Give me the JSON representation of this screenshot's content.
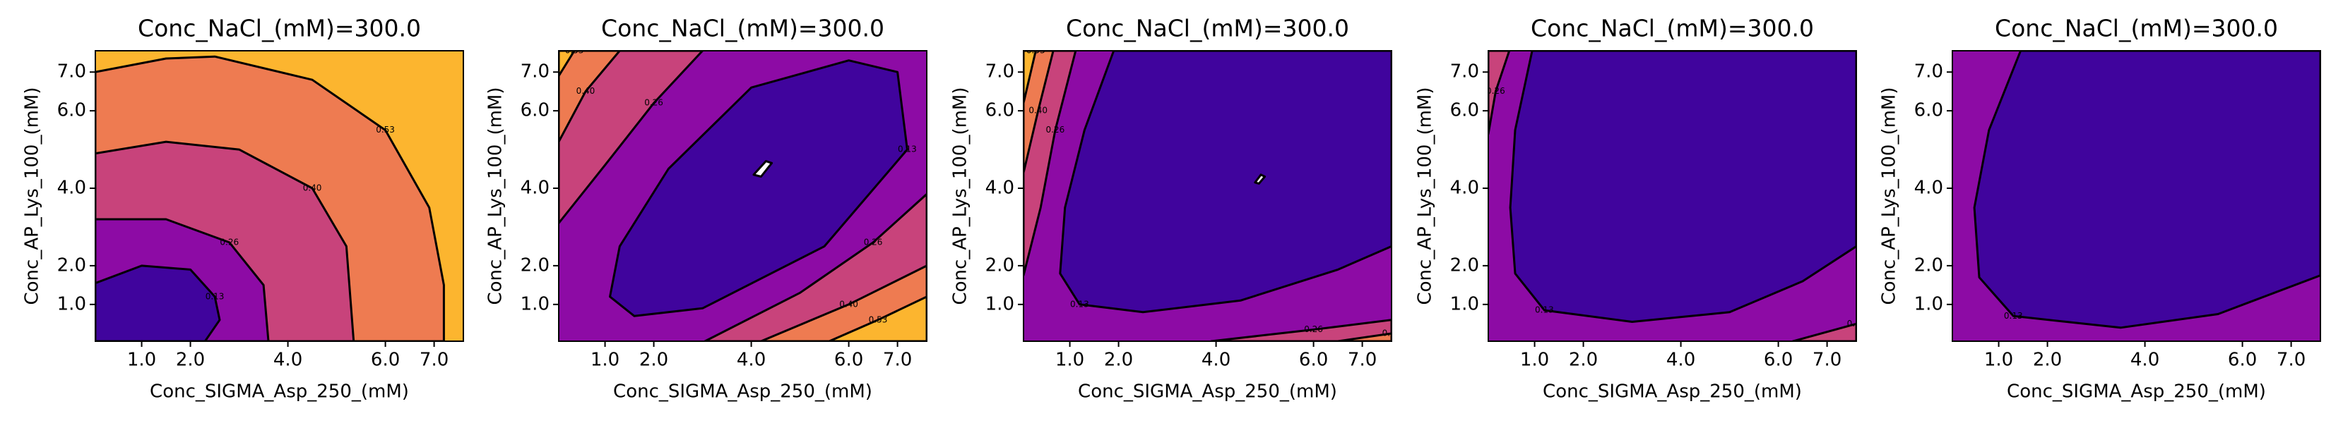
{
  "chart_data": [
    {
      "type": "contour",
      "title": "Conc_NaCl_(mM)=300.0",
      "xlabel": "Conc_SIGMA_Asp_250_(mM)",
      "ylabel": "Conc_AP_Lys_100_(mM)",
      "xlim": [
        0.05,
        7.6
      ],
      "ylim": [
        0.05,
        7.55
      ],
      "xticks": [
        {
          "value": 1,
          "label": "1.0"
        },
        {
          "value": 2,
          "label": "2.0"
        },
        {
          "value": 4,
          "label": "4.0"
        },
        {
          "value": 6,
          "label": "6.0"
        },
        {
          "value": 7,
          "label": "7.0"
        }
      ],
      "yticks": [
        {
          "value": 1,
          "label": "1.0"
        },
        {
          "value": 2,
          "label": "2.0"
        },
        {
          "value": 4,
          "label": "4.0"
        },
        {
          "value": 6,
          "label": "6.0"
        },
        {
          "value": 7,
          "label": "7.0"
        }
      ],
      "background": "#fcb52f",
      "contours": [
        {
          "level": {
            "value": 0.53,
            "label": "0.53"
          },
          "fill": "#ee7b51",
          "x": [
            0.05,
            1.5,
            2.5,
            4.5,
            6,
            6.9,
            7.2,
            7.2,
            0.05
          ],
          "y": [
            7.0,
            7.35,
            7.4,
            6.8,
            5.5,
            3.5,
            1.5,
            0.05,
            0.05
          ]
        },
        {
          "level": {
            "value": 0.4,
            "label": "0.40"
          },
          "fill": "#c8437b",
          "x": [
            0.05,
            1.5,
            3,
            4.5,
            5.2,
            5.35,
            0.05
          ],
          "y": [
            4.9,
            5.2,
            5.0,
            4.0,
            2.5,
            0.05,
            0.05
          ]
        },
        {
          "level": {
            "value": 0.26,
            "label": "0.26"
          },
          "fill": "#8d0ba5",
          "x": [
            0.05,
            1.5,
            2.8,
            3.5,
            3.6,
            0.05
          ],
          "y": [
            3.2,
            3.2,
            2.6,
            1.5,
            0.05,
            0.05
          ]
        },
        {
          "level": {
            "value": 0.13,
            "label": "0.13"
          },
          "fill": "#40049d",
          "x": [
            0.05,
            1,
            2,
            2.5,
            2.6,
            2.3,
            0.05
          ],
          "y": [
            1.55,
            2.0,
            1.9,
            1.2,
            0.6,
            0.05,
            0.05
          ]
        }
      ]
    },
    {
      "type": "contour",
      "title": "Conc_NaCl_(mM)=300.0",
      "xlabel": "Conc_SIGMA_Asp_250_(mM)",
      "ylabel": "Conc_AP_Lys_100_(mM)",
      "xlim": [
        0.05,
        7.6
      ],
      "ylim": [
        0.05,
        7.55
      ],
      "xticks": [
        {
          "value": 1,
          "label": "1.0"
        },
        {
          "value": 2,
          "label": "2.0"
        },
        {
          "value": 4,
          "label": "4.0"
        },
        {
          "value": 6,
          "label": "6.0"
        },
        {
          "value": 7,
          "label": "7.0"
        }
      ],
      "yticks": [
        {
          "value": 1,
          "label": "1.0"
        },
        {
          "value": 2,
          "label": "2.0"
        },
        {
          "value": 4,
          "label": "4.0"
        },
        {
          "value": 6,
          "label": "6.0"
        },
        {
          "value": 7,
          "label": "7.0"
        }
      ],
      "background": "#8d0ba5",
      "contours": [
        {
          "level": {
            "value": 0.26,
            "label": "0.26"
          },
          "fill": "#c8437b",
          "x": [
            0.05,
            1,
            2,
            3,
            0.05
          ],
          "y": [
            3.1,
            4.6,
            6.2,
            7.55,
            7.55
          ]
        },
        {
          "level": {
            "value": 0.4,
            "label": "0.40"
          },
          "fill": "#ee7b51",
          "x": [
            0.05,
            0.6,
            1.3,
            0.05
          ],
          "y": [
            5.2,
            6.5,
            7.55,
            7.55
          ]
        },
        {
          "level": {
            "value": 0.53,
            "label": "0.53"
          },
          "fill": "#fcb52f",
          "x": [
            0.05,
            0.37,
            0.05
          ],
          "y": [
            6.9,
            7.55,
            7.55
          ]
        },
        {
          "level": {
            "value": 0.26,
            "label": "0.26"
          },
          "fill": "#c8437b",
          "x": [
            3.05,
            5,
            6.5,
            7.6,
            7.6
          ],
          "y": [
            0.05,
            1.3,
            2.6,
            3.85,
            0.05
          ]
        },
        {
          "level": {
            "value": 0.4,
            "label": "0.40"
          },
          "fill": "#ee7b51",
          "x": [
            4.2,
            6,
            7.6,
            7.6
          ],
          "y": [
            0.05,
            1.0,
            2.0,
            0.05
          ]
        },
        {
          "level": {
            "value": 0.53,
            "label": "0.53"
          },
          "fill": "#fcb52f",
          "x": [
            5.6,
            6.6,
            7.6,
            7.6
          ],
          "y": [
            0.05,
            0.6,
            1.2,
            0.05
          ]
        },
        {
          "level": {
            "value": 0.13,
            "label": "0.13"
          },
          "fill": "#40049d",
          "x": [
            1.1,
            1.6,
            3,
            5.5,
            7.2,
            7.0,
            6,
            4,
            2.3,
            1.3
          ],
          "y": [
            1.2,
            0.7,
            0.9,
            2.5,
            5,
            7.0,
            7.3,
            6.6,
            4.5,
            2.5
          ]
        },
        {
          "fill": "#ffffff",
          "x": [
            4.05,
            4.3,
            4.42,
            4.2
          ],
          "y": [
            4.35,
            4.7,
            4.65,
            4.3
          ]
        }
      ]
    },
    {
      "type": "contour",
      "title": "Conc_NaCl_(mM)=300.0",
      "xlabel": "Conc_SIGMA_Asp_250_(mM)",
      "ylabel": "Conc_AP_Lys_100_(mM)",
      "xlim": [
        0.05,
        7.6
      ],
      "ylim": [
        0.05,
        7.55
      ],
      "xticks": [
        {
          "value": 1,
          "label": "1.0"
        },
        {
          "value": 2,
          "label": "2.0"
        },
        {
          "value": 4,
          "label": "4.0"
        },
        {
          "value": 6,
          "label": "6.0"
        },
        {
          "value": 7,
          "label": "7.0"
        }
      ],
      "yticks": [
        {
          "value": 1,
          "label": "1.0"
        },
        {
          "value": 2,
          "label": "2.0"
        },
        {
          "value": 4,
          "label": "4.0"
        },
        {
          "value": 6,
          "label": "6.0"
        },
        {
          "value": 7,
          "label": "7.0"
        }
      ],
      "background": "#8d0ba5",
      "contours": [
        {
          "level": {
            "value": 0.26,
            "label": "0.26"
          },
          "fill": "#c8437b",
          "x": [
            0.05,
            0.4,
            0.7,
            1.12,
            0.05
          ],
          "y": [
            1.75,
            3.5,
            5.5,
            7.55,
            7.55
          ]
        },
        {
          "level": {
            "value": 0.4,
            "label": "0.40"
          },
          "fill": "#ee7b51",
          "x": [
            0.05,
            0.35,
            0.66,
            0.05
          ],
          "y": [
            4.4,
            6,
            7.55,
            7.55
          ]
        },
        {
          "level": {
            "value": 0.53,
            "label": "0.53"
          },
          "fill": "#fcb52f",
          "x": [
            0.05,
            0.3,
            0.05
          ],
          "y": [
            6.2,
            7.55,
            7.55
          ]
        },
        {
          "level": {
            "value": 0.26,
            "label": "0.26"
          },
          "fill": "#c8437b",
          "x": [
            3.9,
            6,
            7.6,
            7.6
          ],
          "y": [
            0.05,
            0.35,
            0.6,
            0.05
          ]
        },
        {
          "level": {
            "value": 0.4,
            "label": "0.40"
          },
          "fill": "#ee7b51",
          "x": [
            6.5,
            7.6,
            7.6
          ],
          "y": [
            0.05,
            0.25,
            0.05
          ]
        },
        {
          "level": {
            "value": 0.13,
            "label": "0.13"
          },
          "fill": "#40049d",
          "x": [
            1.9,
            1.3,
            0.9,
            0.8,
            1.2,
            2.5,
            4.5,
            6.5,
            7.6,
            7.6
          ],
          "y": [
            7.55,
            5.5,
            3.5,
            1.8,
            1.0,
            0.8,
            1.1,
            1.9,
            2.5,
            7.55
          ]
        },
        {
          "fill": "#ffffff",
          "x": [
            4.8,
            4.92,
            5.0,
            4.88
          ],
          "y": [
            4.15,
            4.35,
            4.3,
            4.12
          ]
        }
      ]
    },
    {
      "type": "contour",
      "title": "Conc_NaCl_(mM)=300.0",
      "xlabel": "Conc_SIGMA_Asp_250_(mM)",
      "ylabel": "Conc_AP_Lys_100_(mM)",
      "xlim": [
        0.05,
        7.6
      ],
      "ylim": [
        0.05,
        7.55
      ],
      "xticks": [
        {
          "value": 1,
          "label": "1.0"
        },
        {
          "value": 2,
          "label": "2.0"
        },
        {
          "value": 4,
          "label": "4.0"
        },
        {
          "value": 6,
          "label": "6.0"
        },
        {
          "value": 7,
          "label": "7.0"
        }
      ],
      "yticks": [
        {
          "value": 1,
          "label": "1.0"
        },
        {
          "value": 2,
          "label": "2.0"
        },
        {
          "value": 4,
          "label": "4.0"
        },
        {
          "value": 6,
          "label": "6.0"
        },
        {
          "value": 7,
          "label": "7.0"
        }
      ],
      "background": "#8d0ba5",
      "contours": [
        {
          "level": {
            "value": 0.26,
            "label": "0.26"
          },
          "fill": "#c8437b",
          "x": [
            0.05,
            0.2,
            0.48,
            0.05
          ],
          "y": [
            5.4,
            6.5,
            7.55,
            7.55
          ]
        },
        {
          "level": {
            "value": 0.26,
            "label": "0.26"
          },
          "fill": "#c8437b",
          "x": [
            6.3,
            7.6,
            7.6
          ],
          "y": [
            0.05,
            0.5,
            0.05
          ]
        },
        {
          "level": {
            "value": 0.13,
            "label": "0.13"
          },
          "fill": "#40049d",
          "x": [
            0.95,
            0.6,
            0.5,
            0.6,
            1.2,
            3,
            5,
            6.5,
            7.6,
            7.6
          ],
          "y": [
            7.55,
            5.5,
            3.5,
            1.8,
            0.85,
            0.55,
            0.8,
            1.6,
            2.5,
            7.55
          ]
        }
      ]
    },
    {
      "type": "contour",
      "title": "Conc_NaCl_(mM)=300.0",
      "xlabel": "Conc_SIGMA_Asp_250_(mM)",
      "ylabel": "Conc_AP_Lys_100_(mM)",
      "xlim": [
        0.05,
        7.6
      ],
      "ylim": [
        0.05,
        7.55
      ],
      "xticks": [
        {
          "value": 1,
          "label": "1.0"
        },
        {
          "value": 2,
          "label": "2.0"
        },
        {
          "value": 4,
          "label": "4.0"
        },
        {
          "value": 6,
          "label": "6.0"
        },
        {
          "value": 7,
          "label": "7.0"
        }
      ],
      "yticks": [
        {
          "value": 1,
          "label": "1.0"
        },
        {
          "value": 2,
          "label": "2.0"
        },
        {
          "value": 4,
          "label": "4.0"
        },
        {
          "value": 6,
          "label": "6.0"
        },
        {
          "value": 7,
          "label": "7.0"
        }
      ],
      "background": "#8d0ba5",
      "contours": [
        {
          "level": {
            "value": 0.13,
            "label": "0.13"
          },
          "fill": "#40049d",
          "x": [
            1.45,
            0.8,
            0.5,
            0.6,
            1.3,
            3.5,
            5.5,
            7.6,
            7.6
          ],
          "y": [
            7.55,
            5.5,
            3.5,
            1.7,
            0.7,
            0.4,
            0.75,
            1.75,
            7.55
          ]
        }
      ]
    }
  ]
}
